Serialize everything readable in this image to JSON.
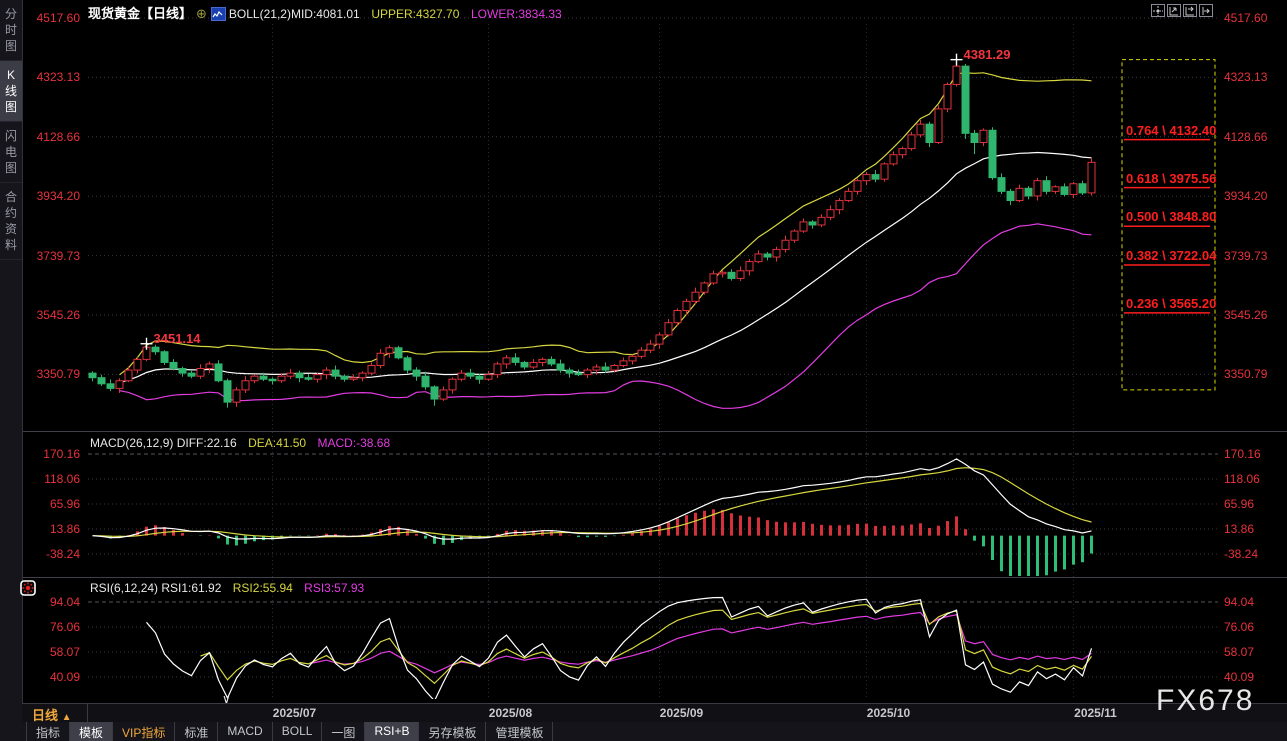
{
  "header": {
    "title": "现货黄金【日线】",
    "adjust_glyph": "⊕",
    "boll_label": "BOLL(21,2)",
    "boll_mid": "MID:4081.01",
    "boll_upper": "UPPER:4327.70",
    "boll_lower": "LOWER:3834.33"
  },
  "sidebar": {
    "items": [
      {
        "name": "tab-time-chart",
        "label": "分时图",
        "active": false
      },
      {
        "name": "tab-kline-chart",
        "label": "K线图",
        "active": true
      },
      {
        "name": "tab-lightning-chart",
        "label": "闪电图",
        "active": false
      },
      {
        "name": "tab-contract-info",
        "label": "合约资料",
        "active": false
      }
    ]
  },
  "macd_panel": {
    "header_white": "MACD(26,12,9) DIFF:22.16",
    "header_yellow": "DEA:41.50",
    "header_magenta": "MACD:-38.68"
  },
  "rsi_panel": {
    "header_white": "RSI(6,12,24) RSI1:61.92",
    "header_yellow": "RSI2:55.94",
    "header_magenta": "RSI3:57.93"
  },
  "xaxis": {
    "period_label": "日线",
    "period_arrow": "▲",
    "collapse_glyph": "∨"
  },
  "toolbar": {
    "items": [
      {
        "name": "tab-indicators",
        "label": "指标",
        "style": "normal"
      },
      {
        "name": "tab-templates",
        "label": "模板",
        "style": "selected"
      },
      {
        "name": "tab-vip-indicators",
        "label": "VIP指标",
        "style": "gold"
      },
      {
        "name": "tab-standard",
        "label": "标准",
        "style": "normal"
      },
      {
        "name": "tab-macd",
        "label": "MACD",
        "style": "normal"
      },
      {
        "name": "tab-boll",
        "label": "BOLL",
        "style": "normal"
      },
      {
        "name": "tab-one-chart",
        "label": "一图",
        "style": "normal"
      },
      {
        "name": "tab-rsi-b",
        "label": "RSI+B",
        "style": "selected"
      },
      {
        "name": "tab-save-template",
        "label": "另存模板",
        "style": "normal"
      },
      {
        "name": "tab-manage-template",
        "label": "管理模板",
        "style": "normal"
      }
    ]
  },
  "watermark": "FX678",
  "colors": {
    "up": "#e0323c",
    "down": "#2fb56d",
    "boll_upper": "#d6d640",
    "boll_mid": "#ffffff",
    "boll_lower": "#e23ce2",
    "diff_line": "#ffffff",
    "dea_line": "#d6d640",
    "hist_pos": "#d8303a",
    "hist_neg": "#2fbe77",
    "rsi1": "#ffffff",
    "rsi2": "#d6d640",
    "rsi3": "#e23ce2",
    "axis_label": "#e8323c",
    "fib": "#ff1e1e",
    "fib_box": "#d8d800",
    "grid": "#3a3a42",
    "grid_bright": "#56565e",
    "panel_border": "#40404a",
    "gold": "#f0a83c",
    "cross_marker": "#ffffff"
  },
  "chart_data": {
    "type": "candlestick",
    "instrument": "现货黄金",
    "timeframe": "日线",
    "x_ticks": [
      {
        "index": 20,
        "label": "2025/07"
      },
      {
        "index": 44,
        "label": "2025/08"
      },
      {
        "index": 63,
        "label": "2025/09"
      },
      {
        "index": 86,
        "label": "2025/10"
      },
      {
        "index": 109,
        "label": "2025/11"
      }
    ],
    "main_axis_values": [
      4517.6,
      4323.13,
      4128.66,
      3934.2,
      3739.73,
      3545.26,
      3350.79
    ],
    "annotations": [
      {
        "type": "high",
        "index": 96,
        "price": 4381.29,
        "label": "4381.29"
      },
      {
        "type": "swing-high",
        "index": 6,
        "price": 3451.14,
        "label": "3451.14"
      }
    ],
    "fibonacci": {
      "box_top_price": 4381.29,
      "box_bottom_price": 3300.0,
      "levels": [
        {
          "ratio": 0.764,
          "price": 4132.4,
          "text": "0.764 \\ 4132.40"
        },
        {
          "ratio": 0.618,
          "price": 3975.56,
          "text": "0.618 \\ 3975.56"
        },
        {
          "ratio": 0.5,
          "price": 3848.8,
          "text": "0.500 \\ 3848.80"
        },
        {
          "ratio": 0.382,
          "price": 3722.04,
          "text": "0.382 \\ 3722.04"
        },
        {
          "ratio": 0.236,
          "price": 3565.2,
          "text": "0.236 \\ 3565.20"
        }
      ]
    },
    "boll": {
      "period": 21,
      "dev": 2,
      "mid": 4081.01,
      "upper": 4327.7,
      "lower": 3834.33
    },
    "macd": {
      "params": [
        26,
        12,
        9
      ],
      "diff": 22.16,
      "dea": 41.5,
      "macd": -38.68,
      "axis_values": [
        170.16,
        118.06,
        65.96,
        13.86,
        -38.24
      ]
    },
    "rsi": {
      "params": [
        6,
        12,
        24
      ],
      "rsi1": 61.92,
      "rsi2": 55.94,
      "rsi3": 57.93,
      "axis_values": [
        94.04,
        76.06,
        58.07,
        40.09
      ]
    },
    "candles": [
      [
        3355,
        3361,
        3328,
        3340
      ],
      [
        3340,
        3350,
        3313,
        3320
      ],
      [
        3320,
        3334,
        3296,
        3305
      ],
      [
        3305,
        3338,
        3290,
        3330
      ],
      [
        3330,
        3377,
        3325,
        3365
      ],
      [
        3365,
        3407,
        3354,
        3400
      ],
      [
        3400,
        3451.14,
        3394,
        3440
      ],
      [
        3440,
        3448,
        3415,
        3425
      ],
      [
        3425,
        3430,
        3382,
        3390
      ],
      [
        3390,
        3401,
        3364,
        3370
      ],
      [
        3370,
        3376,
        3343,
        3355
      ],
      [
        3355,
        3365,
        3338,
        3345
      ],
      [
        3345,
        3384,
        3336,
        3370
      ],
      [
        3370,
        3393,
        3355,
        3385
      ],
      [
        3385,
        3397,
        3325,
        3330
      ],
      [
        3330,
        3337,
        3242,
        3260
      ],
      [
        3260,
        3309,
        3245,
        3300
      ],
      [
        3300,
        3345,
        3290,
        3330
      ],
      [
        3330,
        3350,
        3322,
        3345
      ],
      [
        3345,
        3356,
        3329,
        3335
      ],
      [
        3335,
        3341,
        3318,
        3330
      ],
      [
        3330,
        3355,
        3323,
        3345
      ],
      [
        3345,
        3369,
        3336,
        3355
      ],
      [
        3355,
        3363,
        3325,
        3340
      ],
      [
        3340,
        3352,
        3330,
        3335
      ],
      [
        3335,
        3357,
        3324,
        3350
      ],
      [
        3350,
        3374,
        3335,
        3365
      ],
      [
        3365,
        3380,
        3335,
        3345
      ],
      [
        3345,
        3350,
        3327,
        3335
      ],
      [
        3335,
        3351,
        3329,
        3340
      ],
      [
        3340,
        3361,
        3328,
        3355
      ],
      [
        3355,
        3390,
        3348,
        3380
      ],
      [
        3380,
        3434,
        3371,
        3420
      ],
      [
        3420,
        3446,
        3405,
        3438
      ],
      [
        3438,
        3444,
        3400,
        3405
      ],
      [
        3405,
        3412,
        3354,
        3365
      ],
      [
        3365,
        3374,
        3330,
        3345
      ],
      [
        3345,
        3360,
        3300,
        3310
      ],
      [
        3310,
        3315,
        3248,
        3270
      ],
      [
        3270,
        3311,
        3264,
        3300
      ],
      [
        3300,
        3341,
        3288,
        3335
      ],
      [
        3335,
        3365,
        3328,
        3355
      ],
      [
        3355,
        3369,
        3336,
        3345
      ],
      [
        3345,
        3353,
        3320,
        3335
      ],
      [
        3335,
        3362,
        3330,
        3350
      ],
      [
        3350,
        3392,
        3339,
        3385
      ],
      [
        3385,
        3414,
        3370,
        3405
      ],
      [
        3405,
        3420,
        3380,
        3390
      ],
      [
        3390,
        3395,
        3367,
        3375
      ],
      [
        3375,
        3401,
        3369,
        3390
      ],
      [
        3390,
        3406,
        3378,
        3400
      ],
      [
        3400,
        3410,
        3378,
        3385
      ],
      [
        3385,
        3399,
        3356,
        3365
      ],
      [
        3365,
        3373,
        3340,
        3355
      ],
      [
        3355,
        3367,
        3345,
        3350
      ],
      [
        3350,
        3372,
        3339,
        3365
      ],
      [
        3365,
        3384,
        3350,
        3375
      ],
      [
        3375,
        3390,
        3355,
        3365
      ],
      [
        3365,
        3385,
        3357,
        3380
      ],
      [
        3380,
        3406,
        3374,
        3395
      ],
      [
        3395,
        3416,
        3383,
        3410
      ],
      [
        3410,
        3440,
        3403,
        3430
      ],
      [
        3430,
        3464,
        3421,
        3450
      ],
      [
        3450,
        3488,
        3435,
        3480
      ],
      [
        3480,
        3532,
        3475,
        3520
      ],
      [
        3520,
        3567,
        3509,
        3560
      ],
      [
        3560,
        3599,
        3545,
        3590
      ],
      [
        3590,
        3635,
        3580,
        3620
      ],
      [
        3620,
        3655,
        3612,
        3650
      ],
      [
        3650,
        3691,
        3644,
        3680
      ],
      [
        3680,
        3691,
        3668,
        3685
      ],
      [
        3685,
        3695,
        3658,
        3665
      ],
      [
        3665,
        3704,
        3656,
        3690
      ],
      [
        3690,
        3728,
        3675,
        3720
      ],
      [
        3720,
        3757,
        3715,
        3745
      ],
      [
        3745,
        3752,
        3724,
        3735
      ],
      [
        3735,
        3769,
        3720,
        3760
      ],
      [
        3760,
        3805,
        3750,
        3790
      ],
      [
        3790,
        3825,
        3782,
        3820
      ],
      [
        3820,
        3861,
        3814,
        3850
      ],
      [
        3850,
        3856,
        3828,
        3840
      ],
      [
        3840,
        3875,
        3833,
        3865
      ],
      [
        3865,
        3904,
        3856,
        3890
      ],
      [
        3890,
        3928,
        3875,
        3920
      ],
      [
        3920,
        3962,
        3915,
        3950
      ],
      [
        3950,
        3992,
        3939,
        3985
      ],
      [
        3985,
        4014,
        3970,
        4005
      ],
      [
        4005,
        4020,
        3980,
        3990
      ],
      [
        3990,
        4045,
        3982,
        4040
      ],
      [
        4040,
        4081,
        4034,
        4070
      ],
      [
        4070,
        4096,
        4058,
        4090
      ],
      [
        4090,
        4145,
        4083,
        4135
      ],
      [
        4135,
        4184,
        4126,
        4170
      ],
      [
        4170,
        4178,
        4095,
        4110
      ],
      [
        4110,
        4232,
        4105,
        4220
      ],
      [
        4220,
        4307,
        4209,
        4300
      ],
      [
        4300,
        4381.29,
        4293,
        4360
      ],
      [
        4360,
        4367,
        4122,
        4140
      ],
      [
        4140,
        4151,
        4072,
        4110
      ],
      [
        4110,
        4156,
        4098,
        4150
      ],
      [
        4150,
        4160,
        3988,
        3995
      ],
      [
        3995,
        4009,
        3941,
        3950
      ],
      [
        3950,
        3958,
        3905,
        3920
      ],
      [
        3920,
        3972,
        3915,
        3960
      ],
      [
        3960,
        3967,
        3924,
        3935
      ],
      [
        3935,
        3994,
        3920,
        3985
      ],
      [
        3985,
        4000,
        3940,
        3950
      ],
      [
        3950,
        3970,
        3942,
        3965
      ],
      [
        3965,
        3976,
        3934,
        3940
      ],
      [
        3940,
        3981,
        3928,
        3975
      ],
      [
        3975,
        3985,
        3938,
        3945
      ],
      [
        3945,
        4059,
        3936,
        4045
      ]
    ]
  }
}
